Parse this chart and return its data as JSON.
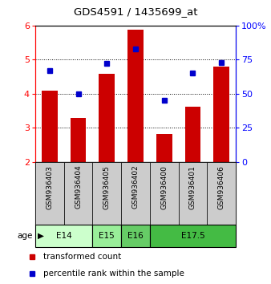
{
  "title": "GDS4591 / 1435699_at",
  "samples": [
    "GSM936403",
    "GSM936404",
    "GSM936405",
    "GSM936402",
    "GSM936400",
    "GSM936401",
    "GSM936406"
  ],
  "transformed_counts": [
    4.1,
    3.28,
    4.58,
    5.87,
    2.82,
    3.63,
    4.79
  ],
  "percentile_ranks": [
    67,
    50,
    72,
    83,
    45,
    65,
    73
  ],
  "bar_bottom": 2.0,
  "ylim_left": [
    2.0,
    6.0
  ],
  "ylim_right": [
    0,
    100
  ],
  "yticks_left": [
    2,
    3,
    4,
    5,
    6
  ],
  "yticks_right": [
    0,
    25,
    50,
    75,
    100
  ],
  "bar_color": "#cc0000",
  "dot_color": "#0000cc",
  "age_groups": [
    {
      "label": "E14",
      "start": 0,
      "end": 2,
      "color": "#ccffcc"
    },
    {
      "label": "E15",
      "start": 2,
      "end": 3,
      "color": "#99ee99"
    },
    {
      "label": "E16",
      "start": 3,
      "end": 4,
      "color": "#66cc66"
    },
    {
      "label": "E17.5",
      "start": 4,
      "end": 7,
      "color": "#44bb44"
    }
  ],
  "bg_color": "#cccccc",
  "plot_bg": "#ffffff",
  "legend_red_label": "transformed count",
  "legend_blue_label": "percentile rank within the sample"
}
